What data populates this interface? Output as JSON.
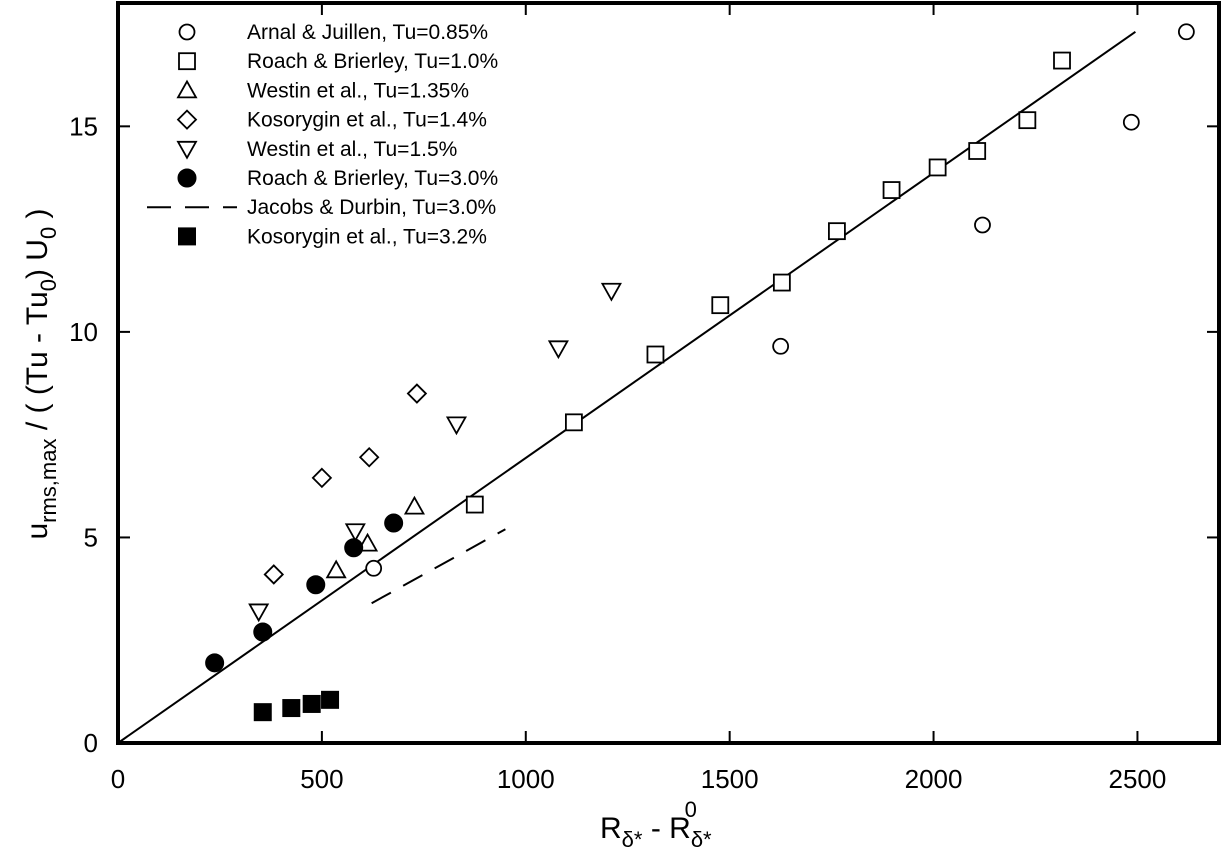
{
  "chart_data": {
    "type": "scatter",
    "title": "",
    "xlabel": "R_δ* - R^0_δ*",
    "ylabel": "u_rms,max / ( (Tu - Tu_0) U_0 )",
    "xlim": [
      0,
      2700
    ],
    "ylim": [
      0,
      18
    ],
    "xticks": [
      0,
      500,
      1000,
      1500,
      2000,
      2500
    ],
    "yticks": [
      0,
      5,
      10,
      15
    ],
    "grid": false,
    "legend_position": "top-left",
    "series": [
      {
        "name": "Arnal & Juillen, Tu=0.85%",
        "marker": "circle-open",
        "x": [
          627,
          1625,
          2120,
          2485,
          2620
        ],
        "y": [
          4.25,
          9.65,
          12.6,
          15.1,
          17.3
        ]
      },
      {
        "name": "Roach & Brierley, Tu=1.0%",
        "marker": "square-open",
        "x": [
          875,
          1118,
          1318,
          1477,
          1628,
          1763,
          1897,
          2010,
          2107,
          2230,
          2315
        ],
        "y": [
          5.8,
          7.8,
          9.45,
          10.65,
          11.2,
          12.45,
          13.45,
          14.0,
          14.4,
          15.15,
          16.6
        ]
      },
      {
        "name": "Westin et al., Tu=1.35%",
        "marker": "triangle-up-open",
        "x": [
          535,
          612,
          727
        ],
        "y": [
          4.2,
          4.85,
          5.75
        ]
      },
      {
        "name": "Kosorygin et al., Tu=1.4%",
        "marker": "diamond-open",
        "x": [
          382,
          500,
          616,
          733
        ],
        "y": [
          4.1,
          6.45,
          6.95,
          8.5
        ]
      },
      {
        "name": "Westin et al., Tu=1.5%",
        "marker": "triangle-down-open",
        "x": [
          345,
          582,
          830,
          1080,
          1210
        ],
        "y": [
          3.2,
          5.15,
          7.75,
          9.6,
          11.0
        ]
      },
      {
        "name": "Roach & Brierley, Tu=3.0%",
        "marker": "circle-filled",
        "x": [
          237,
          355,
          485,
          578,
          676
        ],
        "y": [
          1.95,
          2.7,
          3.85,
          4.75,
          5.35
        ]
      },
      {
        "name": "Jacobs & Durbin, Tu=3.0%",
        "marker": "dashed-line",
        "x": [
          622,
          950
        ],
        "y": [
          3.4,
          5.2
        ]
      },
      {
        "name": "Kosorygin et al., Tu=3.2%",
        "marker": "square-filled",
        "x": [
          355,
          425,
          475,
          520
        ],
        "y": [
          0.75,
          0.85,
          0.95,
          1.05
        ]
      }
    ],
    "fit_line": {
      "x": [
        0,
        2495
      ],
      "y": [
        0,
        17.3
      ]
    }
  }
}
